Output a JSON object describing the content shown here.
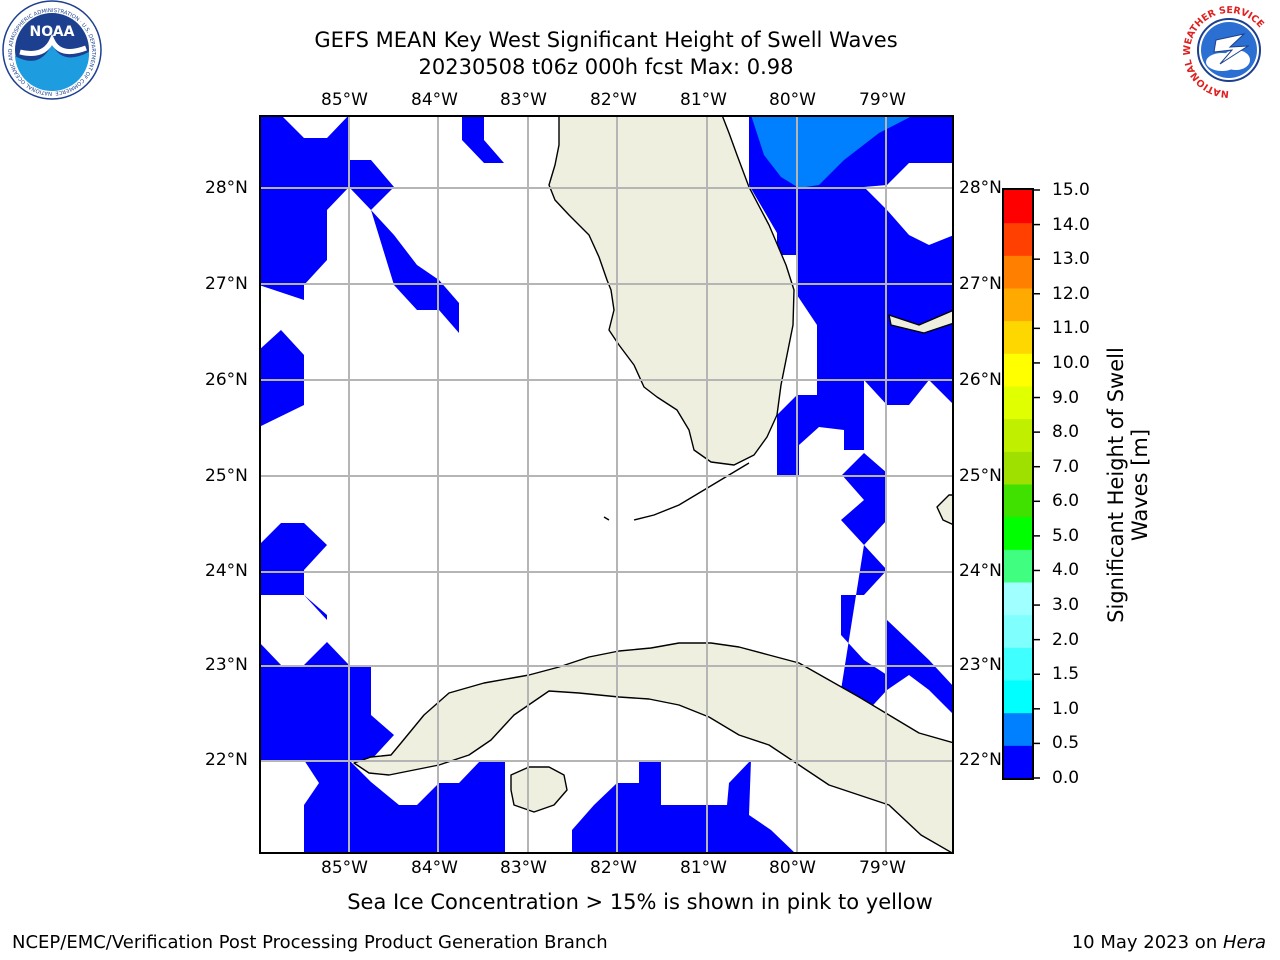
{
  "header": {
    "title_line1": "GEFS MEAN Key West Significant Height of Swell Waves",
    "title_line2": "20230508 t06z 000h fcst   Max: 0.98"
  },
  "logos": {
    "noaa_text": "NOAA",
    "noaa_ring_text": "NATIONAL OCEANIC AND ATMOSPHERIC ADMINISTRATION · U.S. DEPARTMENT OF COMMERCE",
    "nws_ring_text": "NATIONAL WEATHER SERVICE"
  },
  "map": {
    "lon_labels": [
      "85°W",
      "84°W",
      "83°W",
      "82°W",
      "81°W",
      "80°W",
      "79°W"
    ],
    "lat_labels": [
      "28°N",
      "27°N",
      "26°N",
      "25°N",
      "24°N",
      "23°N",
      "22°N"
    ],
    "colors": {
      "land": "#efefdf",
      "water": "#ffffff",
      "swell_low": "#0000ff",
      "swell_mid": "#0080ff",
      "grid": "#b5b5b5"
    }
  },
  "colorbar": {
    "label_line1": "Significant Height of Swell",
    "label_line2": "Waves [m]",
    "ticks": [
      "0.0",
      "0.5",
      "1.0",
      "1.5",
      "2.0",
      "3.0",
      "4.0",
      "5.0",
      "6.0",
      "7.0",
      "8.0",
      "9.0",
      "10.0",
      "11.0",
      "12.0",
      "13.0",
      "14.0",
      "15.0"
    ],
    "colors": [
      "#0000ff",
      "#0080ff",
      "#00ffff",
      "#40ffff",
      "#80ffff",
      "#a0ffff",
      "#40ff80",
      "#00ff00",
      "#40e000",
      "#a0e000",
      "#c0f000",
      "#e0ff00",
      "#ffff00",
      "#ffd700",
      "#ffaa00",
      "#ff8000",
      "#ff4000",
      "#ff0000"
    ]
  },
  "note": "Sea Ice Concentration > 15% is shown in pink to yellow",
  "footer": {
    "left": "NCEP/EMC/Verification Post Processing Product Generation Branch",
    "right_prefix": "10 May 2023 on ",
    "right_host": "Hera"
  }
}
